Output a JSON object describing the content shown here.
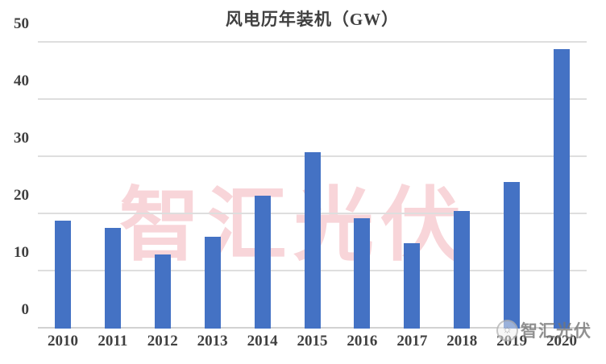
{
  "page": {
    "background": "#FFFFFF"
  },
  "chart_data": {
    "type": "bar",
    "title": "风电历年装机（GW）",
    "categories": [
      "2010",
      "2011",
      "2012",
      "2013",
      "2014",
      "2015",
      "2016",
      "2017",
      "2018",
      "2019",
      "2020"
    ],
    "values": [
      18.9,
      17.6,
      13.0,
      16.1,
      23.2,
      30.8,
      19.3,
      15.0,
      20.6,
      25.7,
      48.9
    ],
    "xlabel": "",
    "ylabel": "",
    "ylim": [
      0,
      50
    ],
    "yticks": [
      0,
      10,
      20,
      30,
      40,
      50
    ],
    "grid": true,
    "legend": false,
    "bar_color": "#4472C4",
    "gridline_color": "#DEDEDE",
    "axis_text_color": "#404040"
  },
  "watermarks": {
    "center_text": "智汇光伏",
    "corner_text": "智汇光伏",
    "corner_icon": "☼",
    "center_color": "#E55C6E",
    "corner_color": "#767676"
  }
}
